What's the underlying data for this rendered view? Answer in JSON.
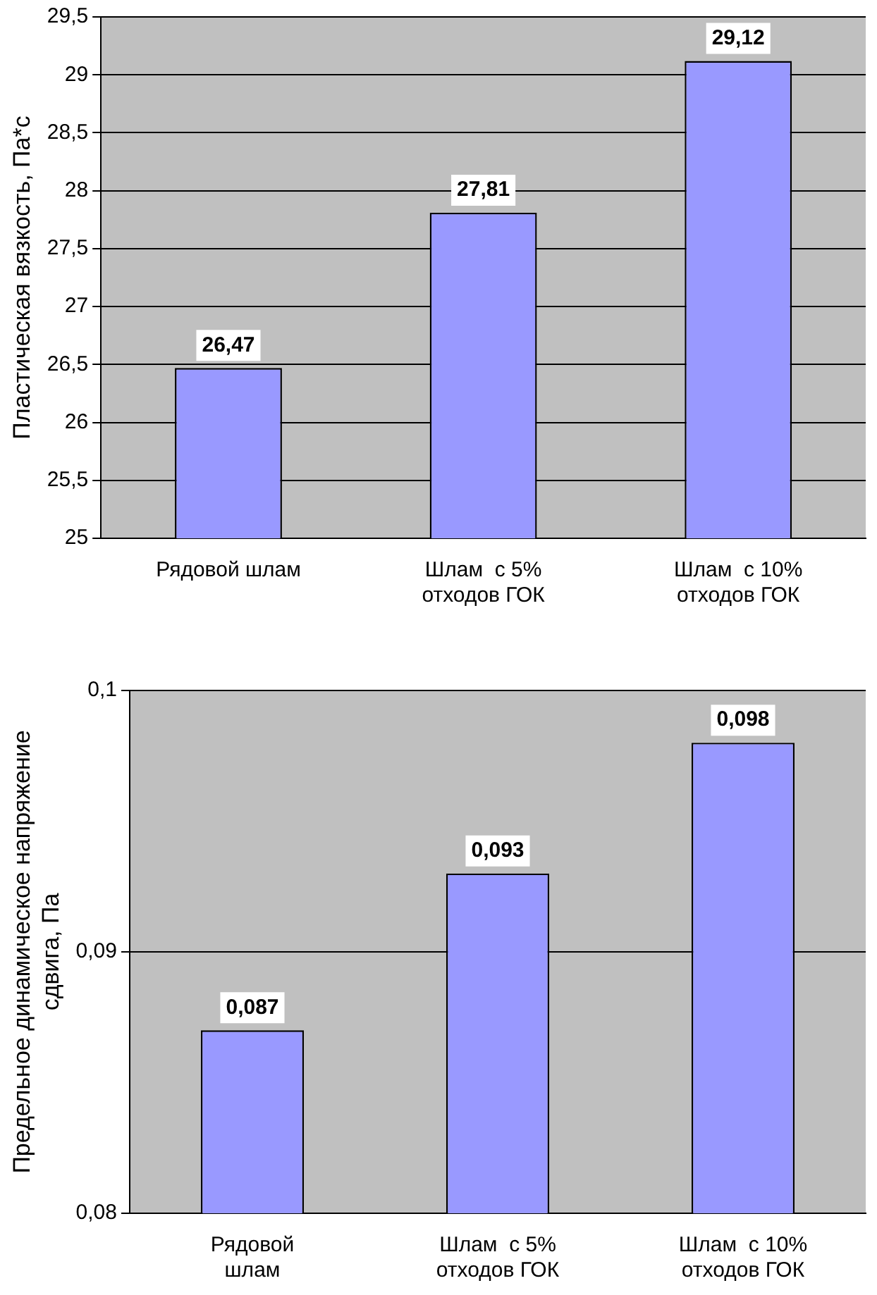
{
  "chart_data": [
    {
      "type": "bar",
      "ylabel": "Пластическая вязкость, Па*с",
      "categories": [
        "Рядовой шлам",
        "Шлам  с 5%\nотходов ГОК",
        "Шлам  с 10%\nотходов ГОК"
      ],
      "values": [
        26.47,
        27.81,
        29.12
      ],
      "value_labels": [
        "26,47",
        "27,81",
        "29,12"
      ],
      "color": "#9999ff",
      "ylim": [
        25,
        29.5
      ],
      "yticks": [
        {
          "value": 25,
          "label": "25"
        },
        {
          "value": 25.5,
          "label": "25,5"
        },
        {
          "value": 26,
          "label": "26"
        },
        {
          "value": 26.5,
          "label": "26,5"
        },
        {
          "value": 27,
          "label": "27"
        },
        {
          "value": 27.5,
          "label": "27,5"
        },
        {
          "value": 28,
          "label": "28"
        },
        {
          "value": 28.5,
          "label": "28,5"
        },
        {
          "value": 29,
          "label": "29"
        },
        {
          "value": 29.5,
          "label": "29,5"
        }
      ],
      "grid": "y",
      "legend": false
    },
    {
      "type": "bar",
      "ylabel": "Предельное динамическое напряжение\nсдвига, Па",
      "categories": [
        "Рядовой\nшлам",
        "Шлам  с 5%\nотходов ГОК",
        "Шлам  с 10%\nотходов ГОК"
      ],
      "values": [
        0.087,
        0.093,
        0.098
      ],
      "value_labels": [
        "0,087",
        "0,093",
        "0,098"
      ],
      "color": "#9999ff",
      "ylim": [
        0.08,
        0.1
      ],
      "yticks": [
        {
          "value": 0.08,
          "label": "0,08"
        },
        {
          "value": 0.09,
          "label": "0,09"
        },
        {
          "value": 0.1,
          "label": "0,1"
        }
      ],
      "grid": "y",
      "legend": false
    }
  ]
}
